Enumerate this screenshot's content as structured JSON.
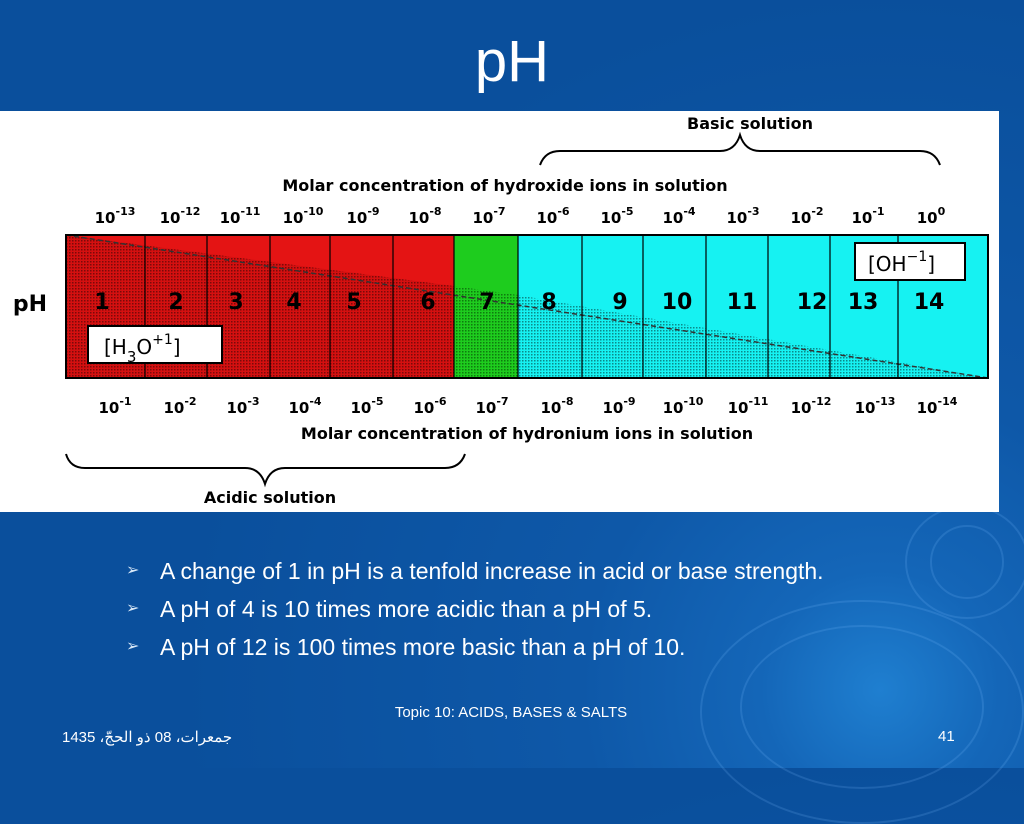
{
  "slide": {
    "title": "pH",
    "bullets": [
      "A change of 1 in pH is a tenfold increase in acid or base strength.",
      "A pH of 4 is 10 times more acidic than a pH of 5.",
      "A pH of 12 is 100 times more basic than a pH of 10."
    ],
    "footer": {
      "date": "جمعرات، 08 ذو الحجّ، 1435",
      "topic": "Topic 10: ACIDS, BASES & SALTS",
      "page_number": "41"
    }
  },
  "diagram": {
    "basic_label": "Basic solution",
    "acidic_label": "Acidic solution",
    "top_axis_label": "Molar concentration of hydroxide ions in solution",
    "bottom_axis_label": "Molar concentration of hydronium ions in solution",
    "ph_label": "pH",
    "oh_label": "[OH",
    "oh_sup": "−1",
    "oh_close": "]",
    "h3o_label_a": "[H",
    "h3o_sub": "3",
    "h3o_label_b": "O",
    "h3o_sup": "+1",
    "h3o_close": "]",
    "ph_values": [
      "1",
      "2",
      "3",
      "4",
      "5",
      "6",
      "7",
      "8",
      "9",
      "10",
      "11",
      "12",
      "13",
      "14"
    ],
    "hydroxide_exponents": [
      "-13",
      "-12",
      "-11",
      "-10",
      "-9",
      "-8",
      "-7",
      "-6",
      "-5",
      "-4",
      "-3",
      "-2",
      "-1",
      "0"
    ],
    "hydronium_exponents": [
      "-1",
      "-2",
      "-3",
      "-4",
      "-5",
      "-6",
      "-7",
      "-8",
      "-9",
      "-10",
      "-11",
      "-12",
      "-13",
      "-14"
    ],
    "base": "10",
    "colors": {
      "acidic": "#e41414",
      "neutral": "#1ecc1e",
      "basic": "#16f2f2"
    }
  }
}
